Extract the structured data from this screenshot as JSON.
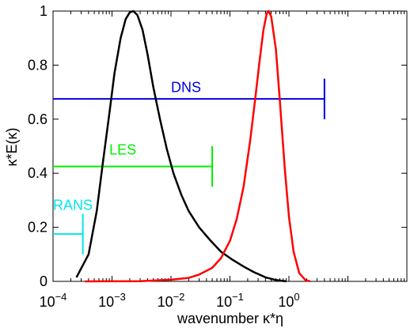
{
  "chart_data": {
    "type": "line",
    "xlabel": "wavenumber κ*η",
    "ylabel": "κ*E(κ)",
    "xscale": "log",
    "xlim": [
      0.0001,
      100
    ],
    "ylim": [
      0,
      1
    ],
    "grid": false,
    "x_ticks": [
      {
        "value": 0.0001,
        "base": "10",
        "exp": "−4"
      },
      {
        "value": 0.001,
        "base": "10",
        "exp": "−3"
      },
      {
        "value": 0.01,
        "base": "10",
        "exp": "−2"
      },
      {
        "value": 0.1,
        "base": "10",
        "exp": "−1"
      },
      {
        "value": 1,
        "base": "10",
        "exp": "0"
      }
    ],
    "y_ticks": [
      {
        "value": 0,
        "label": "0"
      },
      {
        "value": 0.2,
        "label": "0.2"
      },
      {
        "value": 0.4,
        "label": "0.4"
      },
      {
        "value": 0.6,
        "label": "0.6"
      },
      {
        "value": 0.8,
        "label": "0.8"
      },
      {
        "value": 1,
        "label": "1"
      }
    ],
    "series": [
      {
        "color": "#000000",
        "points": [
          [
            0.00025,
            0.015
          ],
          [
            0.0004,
            0.1
          ],
          [
            0.00055,
            0.26
          ],
          [
            0.0007,
            0.44
          ],
          [
            0.0009,
            0.62
          ],
          [
            0.0011,
            0.77
          ],
          [
            0.0014,
            0.9
          ],
          [
            0.0017,
            0.97
          ],
          [
            0.002,
            0.995
          ],
          [
            0.0023,
            1.0
          ],
          [
            0.0027,
            0.985
          ],
          [
            0.0033,
            0.93
          ],
          [
            0.004,
            0.84
          ],
          [
            0.005,
            0.72
          ],
          [
            0.0065,
            0.6
          ],
          [
            0.0085,
            0.49
          ],
          [
            0.011,
            0.4
          ],
          [
            0.015,
            0.32
          ],
          [
            0.02,
            0.26
          ],
          [
            0.03,
            0.2
          ],
          [
            0.045,
            0.155
          ],
          [
            0.07,
            0.11
          ],
          [
            0.11,
            0.08
          ],
          [
            0.17,
            0.055
          ],
          [
            0.25,
            0.035
          ],
          [
            0.4,
            0.015
          ],
          [
            0.6,
            0.005
          ],
          [
            0.9,
            0.0
          ]
        ]
      },
      {
        "color": "#ff0000",
        "points": [
          [
            0.00035,
            0.0
          ],
          [
            0.003,
            0.001
          ],
          [
            0.01,
            0.006
          ],
          [
            0.02,
            0.013
          ],
          [
            0.03,
            0.025
          ],
          [
            0.05,
            0.05
          ],
          [
            0.07,
            0.085
          ],
          [
            0.1,
            0.15
          ],
          [
            0.13,
            0.23
          ],
          [
            0.17,
            0.35
          ],
          [
            0.22,
            0.52
          ],
          [
            0.27,
            0.68
          ],
          [
            0.32,
            0.82
          ],
          [
            0.37,
            0.93
          ],
          [
            0.42,
            0.99
          ],
          [
            0.45,
            1.0
          ],
          [
            0.5,
            0.98
          ],
          [
            0.6,
            0.86
          ],
          [
            0.7,
            0.67
          ],
          [
            0.85,
            0.42
          ],
          [
            1.0,
            0.24
          ],
          [
            1.2,
            0.11
          ],
          [
            1.5,
            0.03
          ],
          [
            1.9,
            0.005
          ],
          [
            2.3,
            0.0
          ]
        ]
      }
    ],
    "range_bars": [
      {
        "label": "DNS",
        "color": "#0000e0",
        "x_start": 0.0001,
        "x_end": 4,
        "y": 0.675,
        "cap_half_height": 0.075,
        "label_x": 0.01,
        "label_y": 0.7
      },
      {
        "label": "LES",
        "color": "#00ee00",
        "x_start": 0.0001,
        "x_end": 0.05,
        "y": 0.425,
        "cap_half_height": 0.075,
        "label_x": 0.0009,
        "label_y": 0.47
      },
      {
        "label": "RANS",
        "color": "#00e8e8",
        "x_start": 0.0001,
        "x_end": 0.00032,
        "y": 0.175,
        "cap_half_height": 0.075,
        "label_x": 0.0001,
        "label_y": 0.265
      }
    ]
  }
}
